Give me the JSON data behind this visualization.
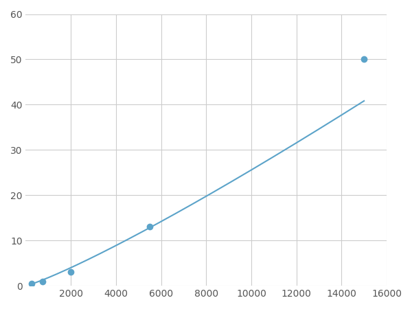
{
  "x_points": [
    250,
    750,
    2000,
    5500,
    15000
  ],
  "y_points": [
    0.5,
    1.0,
    3.0,
    13.0,
    50.0
  ],
  "line_color": "#5ba3c9",
  "marker_color": "#5ba3c9",
  "marker_size": 6,
  "marker_style": "o",
  "line_width": 1.5,
  "xlim": [
    0,
    16000
  ],
  "ylim": [
    0,
    60
  ],
  "xticks": [
    2000,
    4000,
    6000,
    8000,
    10000,
    12000,
    14000,
    16000
  ],
  "yticks": [
    0,
    10,
    20,
    30,
    40,
    50,
    60
  ],
  "grid_color": "#cccccc",
  "grid_linewidth": 0.8,
  "background_color": "#ffffff",
  "tick_labelsize": 10,
  "figure_width": 6.0,
  "figure_height": 4.5,
  "dpi": 100
}
